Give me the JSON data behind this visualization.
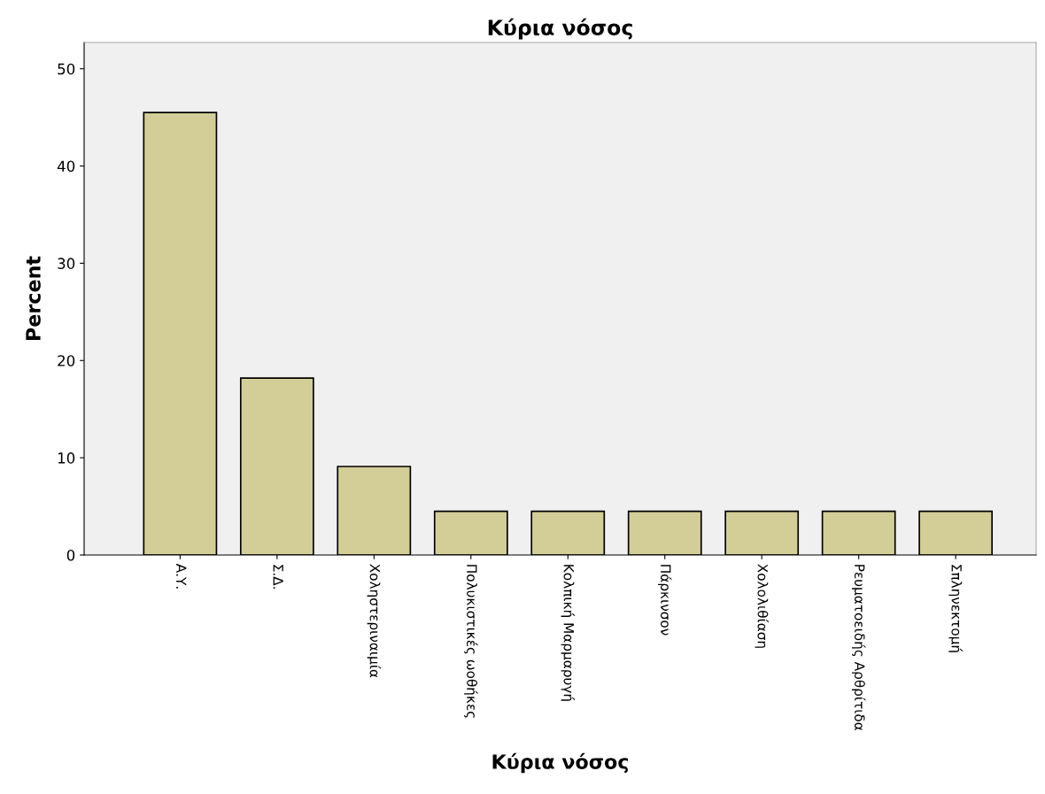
{
  "chart_data": {
    "type": "bar",
    "title": "Κύρια νόσος",
    "xlabel": "Κύρια νόσος",
    "ylabel": "Percent",
    "categories": [
      "Α.Υ.",
      "Σ.Δ.",
      "Χοληστεριναιμία",
      "Πολυκιστικές ωοθήκες",
      "Κολπική Μαρμαρυγή",
      "Πάρκινσον",
      "Χολολιθίαση",
      "Ρευματοειδής Αρθρίτιδα",
      "Σπληνεκτομή"
    ],
    "values": [
      45.5,
      18.2,
      9.1,
      4.5,
      4.5,
      4.5,
      4.5,
      4.5,
      4.5
    ],
    "color": "#d3ce97",
    "ylim": [
      0,
      52.7
    ],
    "yticks": [
      0,
      10,
      20,
      30,
      40,
      50
    ],
    "grid": false
  }
}
